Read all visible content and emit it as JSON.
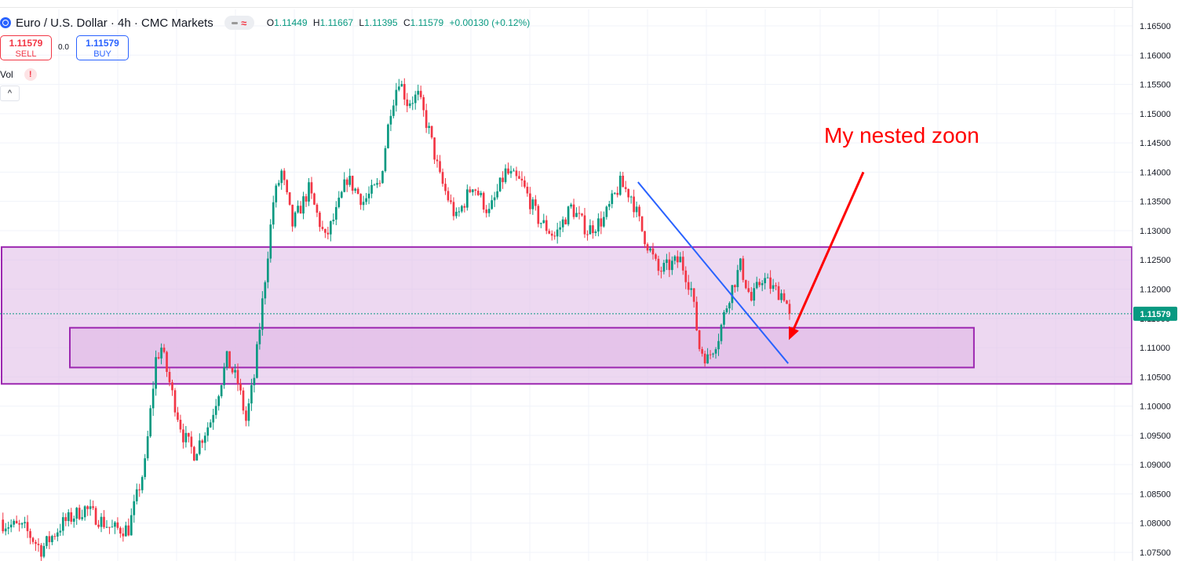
{
  "header": {
    "title": "Euro / U.S. Dollar · 4h · CMC Markets",
    "ohlc": {
      "o_label": "O",
      "o": "1.11449",
      "h_label": "H",
      "h": "1.11667",
      "l_label": "L",
      "l": "1.11395",
      "c_label": "C",
      "c": "1.11579",
      "change": "+0.00130 (+0.12%)"
    },
    "badge_symbol": "≈"
  },
  "trade": {
    "sell_price": "1.11579",
    "sell_label": "SELL",
    "spread": "0.0",
    "buy_price": "1.11579",
    "buy_label": "BUY"
  },
  "volume": {
    "label": "Vol",
    "warning": "!"
  },
  "collapse_symbol": "^",
  "colors": {
    "up": "#089981",
    "down": "#f23645",
    "zone_border": "#9c27b0",
    "zone_fill": "#e1bee7",
    "trendline": "#2962ff",
    "annotation": "#ff0000",
    "price_tag": "#089981"
  },
  "chart_data": {
    "type": "candlestick",
    "symbol": "Euro / U.S. Dollar",
    "timeframe": "4h",
    "y_axis_labels": [
      "1.16500",
      "1.16000",
      "1.15500",
      "1.15000",
      "1.14500",
      "1.14000",
      "1.13500",
      "1.13000",
      "1.12500",
      "1.12000",
      "1.11500",
      "1.11000",
      "1.10500",
      "1.10000",
      "1.09500",
      "1.09000",
      "1.08500",
      "1.08000",
      "1.07500"
    ],
    "ylim": [
      1.0742,
      1.1675
    ],
    "last_price": 1.11579,
    "last_price_label": "1.11579",
    "grid": true,
    "close_path": [
      {
        "bar": 0,
        "close": 1.08
      },
      {
        "bar": 8,
        "close": 1.079
      },
      {
        "bar": 14,
        "close": 1.0755
      },
      {
        "bar": 22,
        "close": 1.08
      },
      {
        "bar": 30,
        "close": 1.0825
      },
      {
        "bar": 40,
        "close": 1.079
      },
      {
        "bar": 46,
        "close": 1.079
      },
      {
        "bar": 52,
        "close": 1.09
      },
      {
        "bar": 56,
        "close": 1.108
      },
      {
        "bar": 58,
        "close": 1.11
      },
      {
        "bar": 62,
        "close": 1.102
      },
      {
        "bar": 66,
        "close": 1.095
      },
      {
        "bar": 70,
        "close": 1.092
      },
      {
        "bar": 76,
        "close": 1.0975
      },
      {
        "bar": 82,
        "close": 1.108
      },
      {
        "bar": 86,
        "close": 1.104
      },
      {
        "bar": 89,
        "close": 1.0975
      },
      {
        "bar": 92,
        "close": 1.105
      },
      {
        "bar": 96,
        "close": 1.122
      },
      {
        "bar": 99,
        "close": 1.135
      },
      {
        "bar": 102,
        "close": 1.14
      },
      {
        "bar": 106,
        "close": 1.131
      },
      {
        "bar": 112,
        "close": 1.137
      },
      {
        "bar": 118,
        "close": 1.1285
      },
      {
        "bar": 122,
        "close": 1.133
      },
      {
        "bar": 126,
        "close": 1.139
      },
      {
        "bar": 132,
        "close": 1.135
      },
      {
        "bar": 138,
        "close": 1.138
      },
      {
        "bar": 142,
        "close": 1.151
      },
      {
        "bar": 145,
        "close": 1.156
      },
      {
        "bar": 148,
        "close": 1.152
      },
      {
        "bar": 152,
        "close": 1.153
      },
      {
        "bar": 156,
        "close": 1.147
      },
      {
        "bar": 160,
        "close": 1.139
      },
      {
        "bar": 166,
        "close": 1.132
      },
      {
        "bar": 172,
        "close": 1.138
      },
      {
        "bar": 178,
        "close": 1.133
      },
      {
        "bar": 184,
        "close": 1.14
      },
      {
        "bar": 190,
        "close": 1.138
      },
      {
        "bar": 196,
        "close": 1.132
      },
      {
        "bar": 202,
        "close": 1.129
      },
      {
        "bar": 208,
        "close": 1.134
      },
      {
        "bar": 214,
        "close": 1.13
      },
      {
        "bar": 220,
        "close": 1.132
      },
      {
        "bar": 226,
        "close": 1.138
      },
      {
        "bar": 230,
        "close": 1.136
      },
      {
        "bar": 234,
        "close": 1.13
      },
      {
        "bar": 240,
        "close": 1.123
      },
      {
        "bar": 244,
        "close": 1.124
      },
      {
        "bar": 248,
        "close": 1.125
      },
      {
        "bar": 252,
        "close": 1.12
      },
      {
        "bar": 255,
        "close": 1.11
      },
      {
        "bar": 258,
        "close": 1.108
      },
      {
        "bar": 262,
        "close": 1.112
      },
      {
        "bar": 266,
        "close": 1.119
      },
      {
        "bar": 270,
        "close": 1.124
      },
      {
        "bar": 274,
        "close": 1.118
      },
      {
        "bar": 278,
        "close": 1.122
      },
      {
        "bar": 282,
        "close": 1.12
      },
      {
        "bar": 286,
        "close": 1.119
      },
      {
        "bar": 288,
        "close": 1.11579
      }
    ],
    "zones": [
      {
        "name": "outer-zone",
        "price_top": 1.1272,
        "price_bottom": 1.1038,
        "bar_start": 0,
        "bar_end": "right-edge"
      },
      {
        "name": "nested-zone",
        "price_top": 1.1134,
        "price_bottom": 1.1066,
        "bar_start": 25,
        "bar_end": 356
      }
    ],
    "trendline": {
      "start": {
        "bar": 233,
        "price": 1.1383
      },
      "end": {
        "bar": 288,
        "price": 1.1073
      }
    },
    "annotation": {
      "text": "My nested zoon",
      "arrow_from_price": 1.14,
      "arrow_to_price": 1.1113
    }
  }
}
